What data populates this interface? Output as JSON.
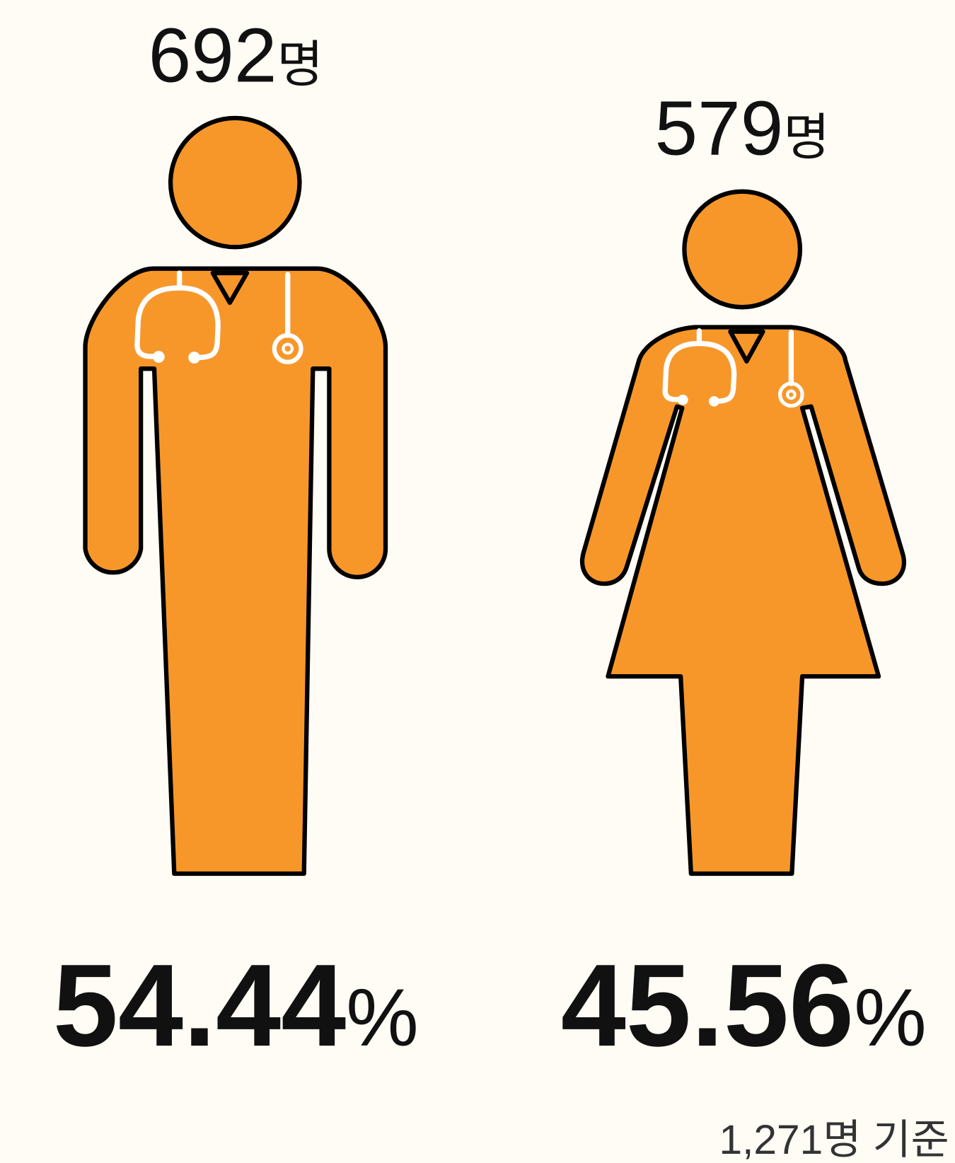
{
  "figures": [
    {
      "count": "692",
      "count_unit": "명",
      "share": "54.44",
      "share_unit": "%"
    },
    {
      "count": "579",
      "count_unit": "명",
      "share": "45.56",
      "share_unit": "%"
    }
  ],
  "footnote": "1,271명 기준"
}
